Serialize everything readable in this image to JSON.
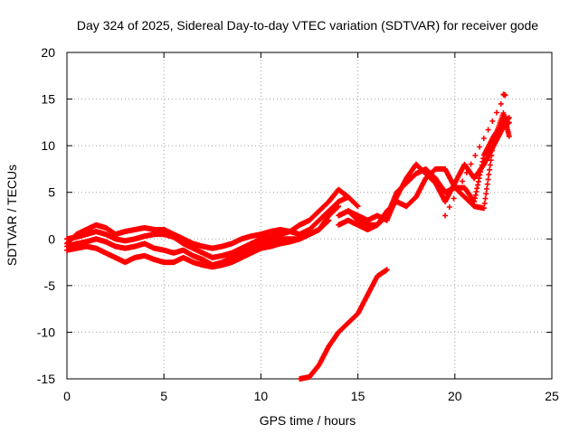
{
  "chart_data": {
    "type": "scatter",
    "title": "Day 324 of 2025, Sidereal Day-to-day VTEC variation (SDTVAR) for receiver gode",
    "xlabel": "GPS time / hours",
    "ylabel": "SDTVAR / TECUs",
    "xlim": [
      0,
      25
    ],
    "ylim": [
      -15,
      20
    ],
    "xticks": [
      "0",
      "5",
      "10",
      "15",
      "20",
      "25"
    ],
    "yticks": [
      "-15",
      "-10",
      "-5",
      "0",
      "5",
      "10",
      "15",
      "20"
    ],
    "grid": true,
    "marker": "+",
    "colors": {
      "series": "#ff0000"
    },
    "series": [
      {
        "name": "track-1",
        "x": [
          0.0,
          0.5,
          1.0,
          1.5,
          2.0,
          2.5,
          3.0,
          3.5,
          4.0,
          4.5,
          5.0,
          5.5,
          6.0,
          6.5,
          7.0,
          7.5,
          8.0,
          8.5,
          9.0,
          9.5,
          10.0,
          10.5,
          11.0,
          11.5,
          12.0,
          12.5,
          13.0,
          13.5,
          14.0,
          14.5
        ],
        "y": [
          -0.5,
          0.5,
          1.0,
          1.5,
          1.2,
          0.5,
          0.8,
          1.0,
          1.2,
          1.0,
          1.0,
          0.5,
          0.0,
          -0.5,
          -0.8,
          -1.0,
          -0.8,
          -0.5,
          0.0,
          0.3,
          0.5,
          0.8,
          1.0,
          0.8,
          1.5,
          2.0,
          3.0,
          4.0,
          5.3,
          4.5
        ]
      },
      {
        "name": "track-2",
        "x": [
          0.0,
          0.5,
          1.0,
          1.5,
          2.0,
          2.5,
          3.0,
          3.5,
          4.0,
          4.5,
          5.0,
          5.5,
          6.0,
          6.5,
          7.0,
          7.5,
          8.0,
          8.5,
          9.0,
          9.5,
          10.0,
          10.5,
          11.0,
          11.5,
          12.0,
          12.5,
          13.0,
          13.5,
          14.0,
          14.5,
          15.0
        ],
        "y": [
          0.0,
          0.2,
          0.5,
          0.8,
          0.5,
          0.0,
          -0.2,
          0.0,
          0.3,
          0.5,
          0.5,
          0.2,
          -0.5,
          -1.0,
          -1.5,
          -2.0,
          -1.8,
          -1.5,
          -1.0,
          -0.5,
          0.0,
          0.2,
          0.5,
          0.8,
          0.5,
          1.0,
          2.0,
          3.0,
          4.0,
          4.5,
          3.5
        ]
      },
      {
        "name": "track-3",
        "x": [
          0.0,
          0.5,
          1.0,
          1.5,
          2.0,
          2.5,
          3.0,
          3.5,
          4.0,
          4.5,
          5.0,
          5.5,
          6.0,
          6.5,
          7.0,
          7.5,
          8.0,
          8.5,
          9.0,
          9.5,
          10.0,
          10.5,
          11.0,
          11.5,
          12.0,
          12.5,
          13.0,
          13.5,
          14.0
        ],
        "y": [
          -0.8,
          -0.5,
          -0.3,
          0.0,
          -0.3,
          -0.8,
          -1.0,
          -0.8,
          -0.5,
          -1.0,
          -1.2,
          -1.5,
          -1.2,
          -1.8,
          -2.2,
          -2.8,
          -2.5,
          -2.0,
          -1.5,
          -1.0,
          -0.5,
          -0.3,
          0.0,
          0.0,
          0.0,
          0.5,
          1.0,
          2.5,
          3.5
        ]
      },
      {
        "name": "track-4",
        "x": [
          0.0,
          0.5,
          1.0,
          1.5,
          2.0,
          2.5,
          3.0,
          3.5,
          4.0,
          4.5,
          5.0,
          5.5,
          6.0,
          6.5,
          7.0,
          7.5,
          8.0,
          8.5,
          9.0,
          9.5,
          10.0,
          10.5,
          11.0,
          11.5,
          12.0,
          12.5,
          13.0,
          13.5
        ],
        "y": [
          -1.2,
          -1.0,
          -0.8,
          -1.0,
          -1.5,
          -2.0,
          -2.5,
          -2.0,
          -1.8,
          -2.2,
          -2.5,
          -2.5,
          -2.0,
          -2.5,
          -2.8,
          -3.0,
          -2.8,
          -2.5,
          -2.0,
          -1.5,
          -1.0,
          -0.8,
          -0.5,
          -0.3,
          0.0,
          0.5,
          1.0,
          2.0
        ]
      },
      {
        "name": "track-5",
        "x": [
          14.0,
          14.5,
          15.0,
          15.5,
          16.0,
          16.5,
          17.0,
          17.5,
          18.0,
          18.5,
          19.0,
          19.5,
          20.0,
          20.5,
          21.0,
          21.5,
          22.0,
          22.5,
          22.8
        ],
        "y": [
          2.5,
          3.0,
          2.5,
          2.0,
          2.5,
          2.0,
          4.5,
          6.5,
          8.0,
          7.0,
          6.0,
          4.0,
          6.0,
          8.0,
          6.5,
          8.0,
          10.0,
          12.0,
          12.5
        ]
      },
      {
        "name": "track-6",
        "x": [
          14.0,
          14.5,
          15.0,
          15.5,
          16.0,
          16.5,
          17.0,
          17.5,
          18.0,
          18.5,
          19.0,
          19.5,
          20.0,
          20.5,
          21.0,
          21.5,
          22.0,
          22.5,
          22.8
        ],
        "y": [
          1.5,
          2.0,
          1.5,
          1.0,
          1.5,
          2.5,
          5.0,
          6.0,
          7.0,
          7.5,
          6.5,
          5.0,
          5.5,
          5.5,
          4.0,
          9.0,
          11.0,
          12.5,
          13.0
        ]
      },
      {
        "name": "track-7",
        "x": [
          14.5,
          15.0,
          15.5,
          16.0,
          16.5,
          17.0,
          17.5,
          18.0,
          18.5,
          19.0,
          19.5,
          20.0,
          20.5,
          21.0,
          21.5,
          22.0,
          22.5,
          22.8
        ],
        "y": [
          3.0,
          2.0,
          1.5,
          1.5,
          3.0,
          4.0,
          3.5,
          4.5,
          6.5,
          7.5,
          7.5,
          5.5,
          4.5,
          3.5,
          3.3,
          10.5,
          13.5,
          11.0
        ]
      },
      {
        "name": "track-8",
        "x": [
          12.0,
          12.5,
          13.0,
          13.5,
          14.0,
          14.5,
          15.0,
          15.5,
          16.0,
          16.5
        ],
        "y": [
          -15.0,
          -14.8,
          -13.5,
          -11.5,
          -10.0,
          -9.0,
          -8.0,
          -6.0,
          -4.0,
          -3.3
        ]
      },
      {
        "name": "isolated",
        "x": [
          22.5,
          22.6,
          19.5
        ],
        "y": [
          15.5,
          15.4,
          2.5
        ]
      }
    ]
  }
}
